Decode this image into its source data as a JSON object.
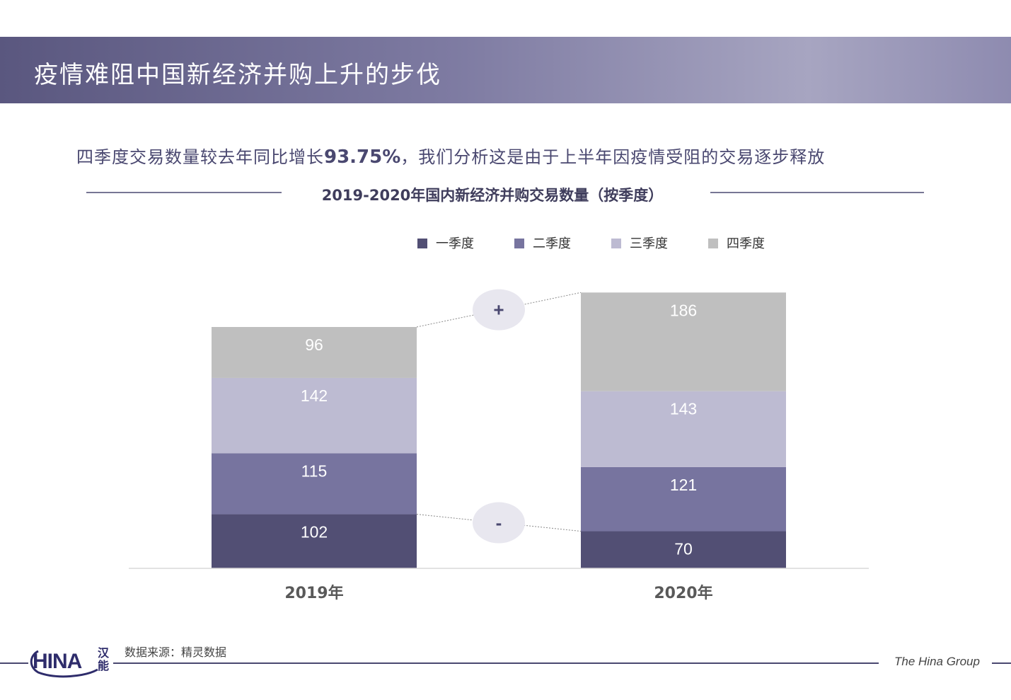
{
  "header": {
    "title": "疫情难阻中国新经济并购上升的步伐"
  },
  "subtitle": {
    "before": "四季度交易数量较去年同比增长",
    "highlight": "93.75%",
    "after": "，我们分析这是由于上半年因疫情受阻的交易逐步释放"
  },
  "colors": {
    "q1": "#524f74",
    "q2": "#77749f",
    "q3": "#bdbbd2",
    "q4": "#bfbfbf",
    "header_start": "#5a577f",
    "accent": "#4a4870",
    "bubble": "#e8e7ef"
  },
  "chart_data": {
    "type": "bar",
    "stacked": true,
    "title": "2019-2020年国内新经济并购交易数量（按季度）",
    "categories": [
      "2019年",
      "2020年"
    ],
    "series": [
      {
        "name": "一季度",
        "values": [
          102,
          70
        ]
      },
      {
        "name": "二季度",
        "values": [
          115,
          121
        ]
      },
      {
        "name": "三季度",
        "values": [
          142,
          143
        ]
      },
      {
        "name": "四季度",
        "values": [
          96,
          186
        ]
      }
    ],
    "annotations": [
      "+",
      "-"
    ],
    "legend_position": "top",
    "ylim": [
      0,
      520
    ]
  },
  "footer": {
    "source": "数据来源：精灵数据",
    "company": "The Hina Group",
    "logo_text": "HINA",
    "logo_cn": "汉能"
  }
}
